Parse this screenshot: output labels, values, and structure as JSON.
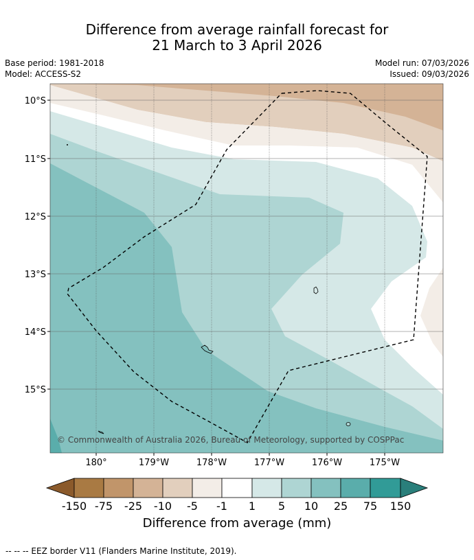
{
  "title": {
    "line1": "Difference from average rainfall forecast for",
    "line2": "21 March to 3 April 2026"
  },
  "meta": {
    "base_period": "Base period: 1981-2018",
    "model": "Model: ACCESS-S2",
    "model_run": "Model run: 07/03/2026",
    "issued": "Issued: 09/03/2026"
  },
  "map": {
    "lat_labels": [
      "10°S",
      "11°S",
      "12°S",
      "13°S",
      "14°S",
      "15°S"
    ],
    "lon_labels": [
      "180°",
      "179°W",
      "178°W",
      "177°W",
      "176°W",
      "175°W"
    ],
    "copyright": "© Commonwealth of Australia 2026, Bureau of Meteorology, supported by COSPPac"
  },
  "colorbar": {
    "ticks": [
      "-150",
      "-75",
      "-25",
      "-10",
      "-5",
      "-1",
      "1",
      "5",
      "10",
      "25",
      "75",
      "150"
    ],
    "colors": {
      "lt_min150": "#8b5a2b",
      "n150_75": "#a97a43",
      "n75_25": "#c1956a",
      "n25_10": "#d4b396",
      "n10_5": "#e2cfbd",
      "n5_1": "#f3ede7",
      "n1_1": "#ffffff",
      "p1_5": "#d5e8e7",
      "p5_10": "#aed5d3",
      "p10_25": "#84c1bf",
      "p25_75": "#5aadab",
      "p75_150": "#319b97",
      "gt_150": "#2a7f7b"
    },
    "label": "Difference from average (mm)"
  },
  "footnote": "-- -- -- EEZ border V11 (Flanders Marine Institute, 2019)."
}
